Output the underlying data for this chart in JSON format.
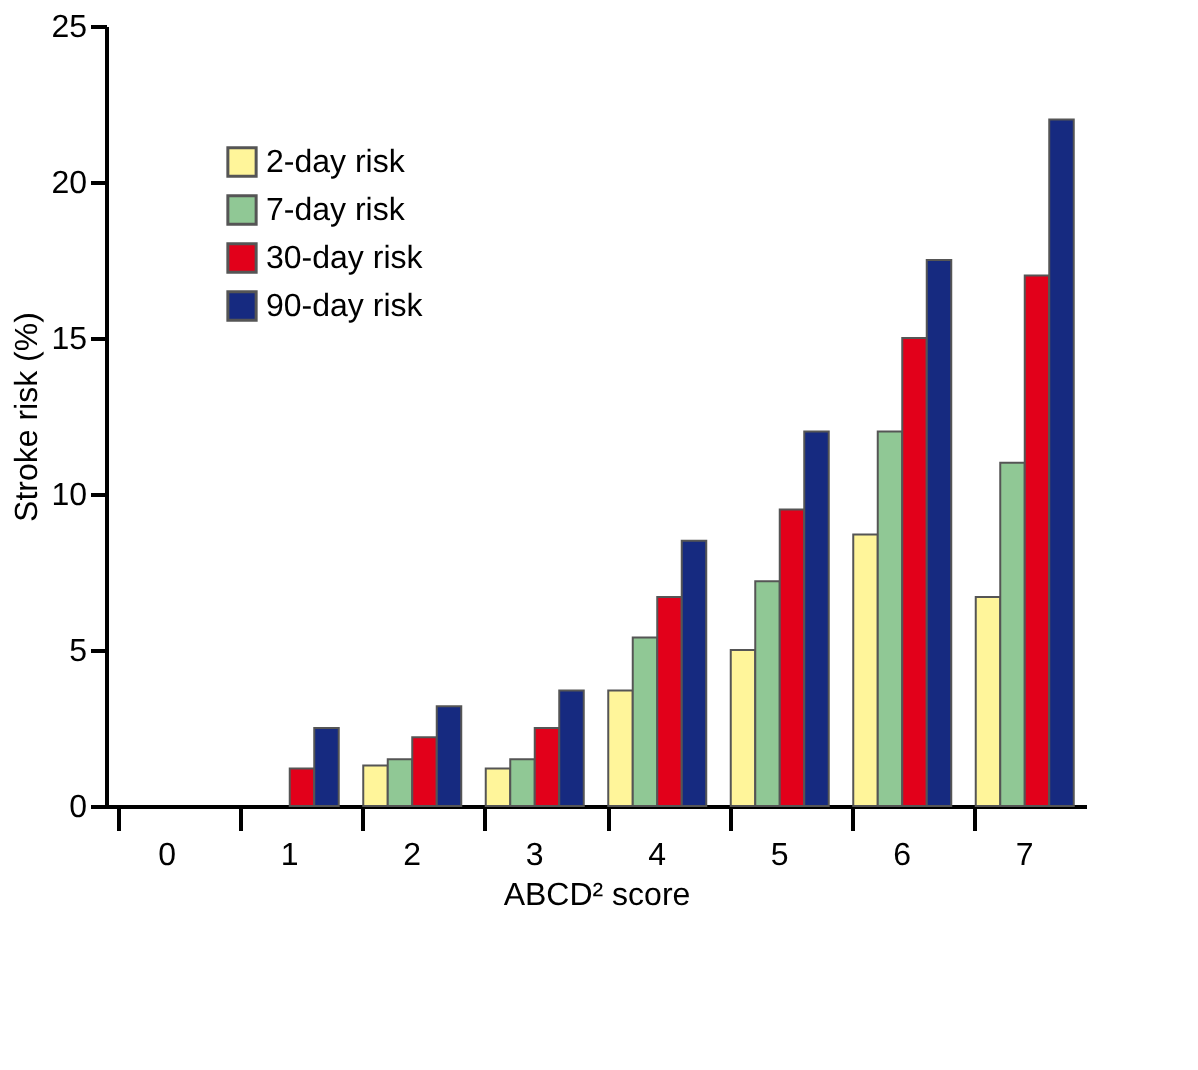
{
  "chart_data": {
    "type": "bar",
    "xlabel": "ABCD² score",
    "ylabel": "Stroke risk (%)",
    "categories": [
      "0",
      "1",
      "2",
      "3",
      "4",
      "5",
      "6",
      "7"
    ],
    "series": [
      {
        "name": "2-day risk",
        "color": "#fff59a",
        "values": [
          null,
          null,
          1.3,
          1.2,
          3.7,
          5.0,
          8.7,
          6.7
        ]
      },
      {
        "name": "7-day risk",
        "color": "#90c895",
        "values": [
          null,
          null,
          1.5,
          1.5,
          5.4,
          7.2,
          12.0,
          11.0
        ]
      },
      {
        "name": "30-day risk",
        "color": "#e2001a",
        "values": [
          null,
          1.2,
          2.2,
          2.5,
          6.7,
          9.5,
          15.0,
          17.0
        ]
      },
      {
        "name": "90-day risk",
        "color": "#162a80",
        "values": [
          null,
          2.5,
          3.2,
          3.7,
          8.5,
          12.0,
          17.5,
          22.0
        ]
      }
    ],
    "ylim": [
      0,
      25
    ],
    "yticks": [
      0,
      5,
      10,
      15,
      20,
      25
    ],
    "grid": false,
    "legend": "top left"
  }
}
